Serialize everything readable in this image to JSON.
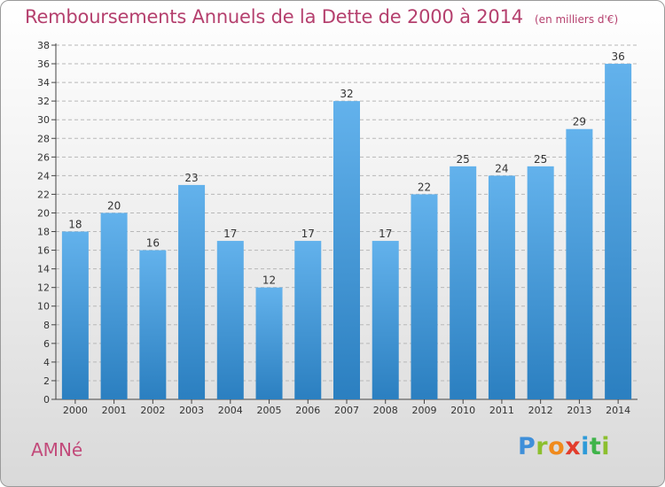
{
  "chart_data": {
    "type": "bar",
    "title": "Remboursements Annuels de la Dette de 2000 à 2014",
    "subtitle": "(en milliers d'€)",
    "categories": [
      "2000",
      "2001",
      "2002",
      "2003",
      "2004",
      "2005",
      "2006",
      "2007",
      "2008",
      "2009",
      "2010",
      "2011",
      "2012",
      "2013",
      "2014"
    ],
    "values": [
      18,
      20,
      16,
      23,
      17,
      12,
      17,
      32,
      17,
      22,
      25,
      24,
      25,
      29,
      36
    ],
    "ylim": [
      0,
      38
    ],
    "yticks": [
      0,
      2,
      4,
      6,
      8,
      10,
      12,
      14,
      16,
      18,
      20,
      22,
      24,
      26,
      28,
      30,
      32,
      34,
      36,
      38
    ],
    "grid": true,
    "xlabel": "",
    "ylabel": ""
  },
  "footer": {
    "town": "AMNé",
    "logo": "Proxiti"
  },
  "colors": {
    "bar_light": "#63b2ec",
    "bar_dark": "#2b7fc0",
    "title": "#b5406e",
    "town": "#c24a7a",
    "logo_letters": [
      "#3f8fd9",
      "#8cbf2e",
      "#f08a1c",
      "#e23c2c",
      "#2d9ad8",
      "#3fb44a",
      "#8cbf2e"
    ]
  }
}
